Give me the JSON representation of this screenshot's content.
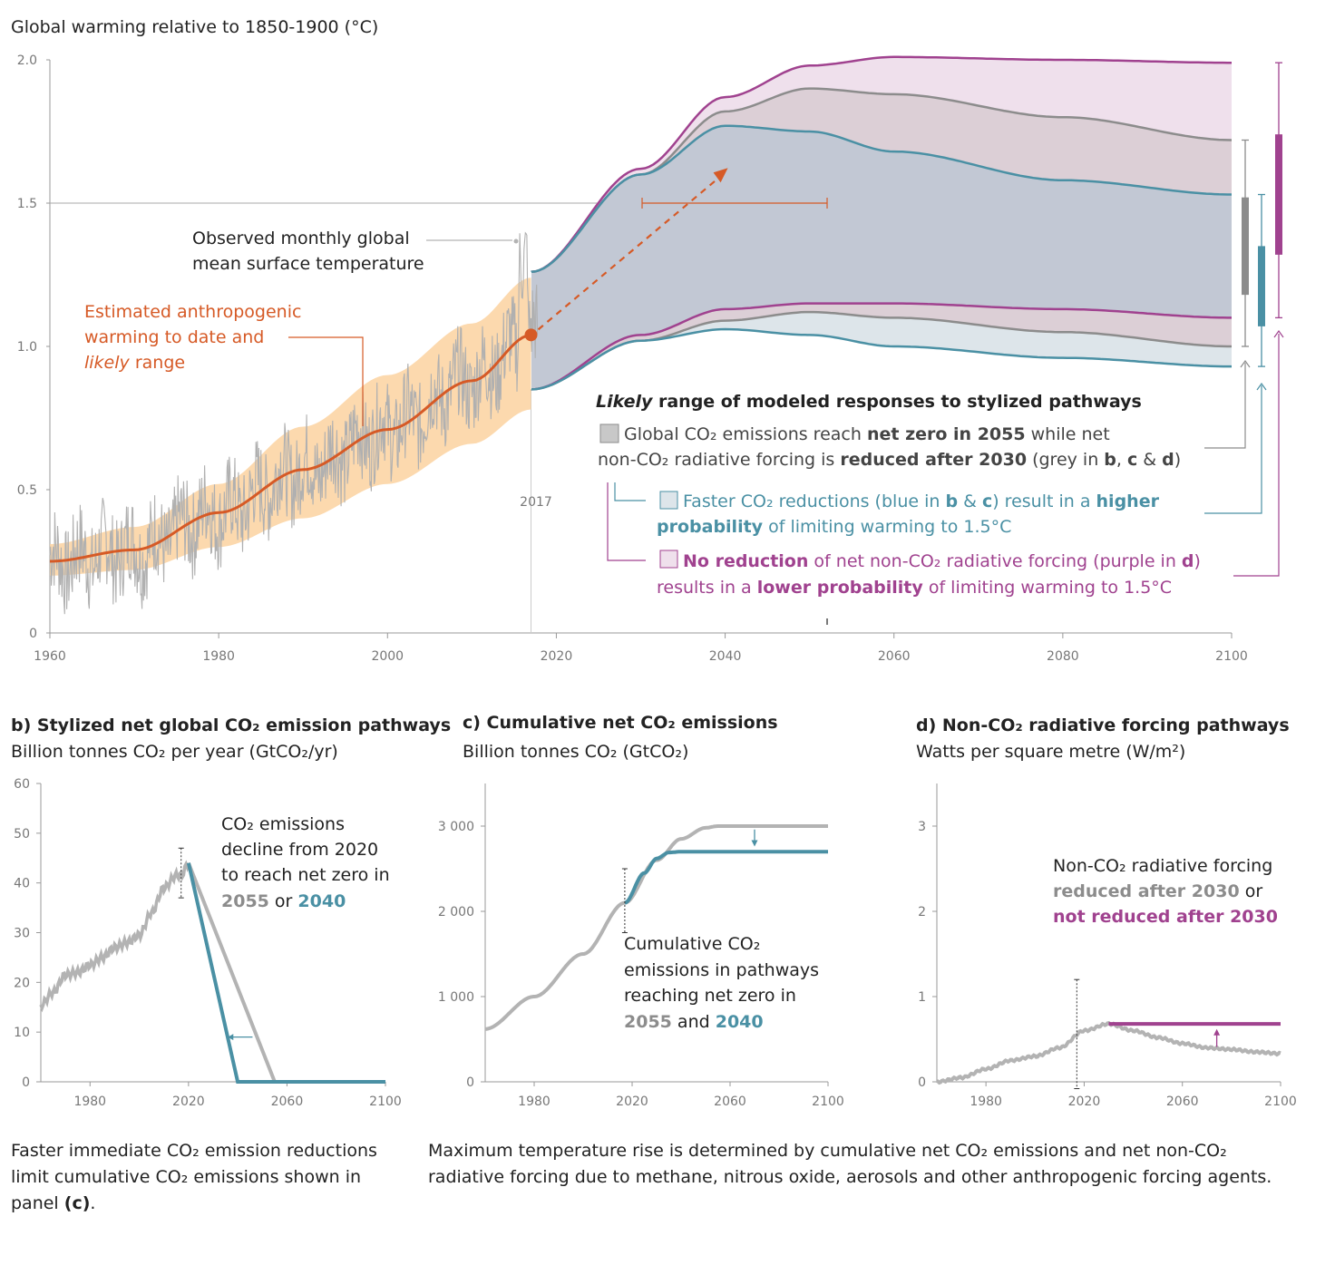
{
  "colors": {
    "orange": "#d65a26",
    "orange_band": "#fbd2a0",
    "grey": "#b3b3b3",
    "grey_dark": "#8c8c8c",
    "blue": "#4a90a4",
    "purple": "#a0428f",
    "band_blue": "#c2c8d4",
    "band_grey": "#dccfd6",
    "band_purple": "#efe0ec",
    "band_lightblue": "#dde5ea"
  },
  "panel_a": {
    "title": "Global warming relative to 1850-1900 (°C)",
    "observed_label_1": "Observed monthly global",
    "observed_label_2": "mean surface temperature",
    "anthro_label_1": "Estimated anthropogenic",
    "anthro_label_2": "warming to date and",
    "anthro_label_3_italic": "likely",
    "anthro_label_3_rest": " range",
    "year_marker": "2017",
    "legend_heading_italic": "Likely",
    "legend_heading_rest": " range of modeled responses to stylized pathways",
    "legend_grey_1a": "Global CO₂ emissions reach ",
    "legend_grey_1b": "net zero in 2055",
    "legend_grey_1c": " while net",
    "legend_grey_2a": "non-CO₂ radiative forcing is ",
    "legend_grey_2b": "reduced after 2030",
    "legend_grey_2c": " (grey in ",
    "legend_grey_2d": "b",
    "legend_grey_2e": ", ",
    "legend_grey_2f": "c",
    "legend_grey_2g": " & ",
    "legend_grey_2h": "d",
    "legend_grey_2i": ")",
    "legend_blue_1a": "Faster CO₂ reductions (blue in ",
    "legend_blue_1b": "b",
    "legend_blue_1c": " & ",
    "legend_blue_1d": "c",
    "legend_blue_1e": ") result in a ",
    "legend_blue_1f": "higher",
    "legend_blue_2a": "probability",
    "legend_blue_2b": " of limiting warming to 1.5°C",
    "legend_purple_1a": "No reduction",
    "legend_purple_1b": " of net non-CO₂ radiative forcing (purple in ",
    "legend_purple_1c": "d",
    "legend_purple_1d": ")",
    "legend_purple_2a": "results in a ",
    "legend_purple_2b": "lower probability",
    "legend_purple_2c": " of limiting warming to 1.5°C"
  },
  "panel_b": {
    "title": "b) Stylized net global CO₂ emission pathways",
    "subtitle": "Billion tonnes CO₂ per year (GtCO₂/yr)",
    "ann_1": "CO₂ emissions",
    "ann_2": "decline from 2020",
    "ann_3": "to reach net zero in",
    "ann_4a": "2055",
    "ann_4b": " or ",
    "ann_4c": "2040"
  },
  "panel_c": {
    "title": "c) Cumulative net CO₂ emissions",
    "subtitle": "Billion tonnes CO₂ (GtCO₂)",
    "ann_1": "Cumulative CO₂",
    "ann_2": "emissions in pathways",
    "ann_3": "reaching net zero in",
    "ann_4a": "2055",
    "ann_4b": " and ",
    "ann_4c": "2040"
  },
  "panel_d": {
    "title": "d) Non-CO₂ radiative forcing pathways",
    "subtitle": "Watts per square metre (W/m²)",
    "ann_1": "Non-CO₂ radiative forcing",
    "ann_2a": "reduced after 2030",
    "ann_2b": " or",
    "ann_3": "not reduced after 2030"
  },
  "footer_left_1": "Faster immediate CO₂ emission reductions",
  "footer_left_2": "limit cumulative CO₂ emissions shown in",
  "footer_left_3a": "panel ",
  "footer_left_3b": "(c)",
  "footer_left_3c": ".",
  "footer_right_1": "Maximum temperature rise is determined by cumulative net CO₂ emissions and net non-CO₂",
  "footer_right_2": "radiative forcing due to methane, nitrous oxide, aerosols and other anthropogenic forcing agents.",
  "chart_data": [
    {
      "type": "line",
      "panel": "a",
      "title": "Global warming relative to 1850-1900 (°C)",
      "xlim": [
        1960,
        2100
      ],
      "ylim": [
        0,
        2.0
      ],
      "x_ticks": [
        1960,
        1980,
        2000,
        2020,
        2040,
        2060,
        2080,
        2100
      ],
      "y_ticks": [
        {
          "value": 0,
          "label": "0"
        },
        {
          "value": 0.5,
          "label": "0.5"
        },
        {
          "value": 1.0,
          "label": "1.0"
        },
        {
          "value": 1.5,
          "label": "1.5"
        },
        {
          "value": 2.0,
          "label": "2.0"
        }
      ],
      "reference_line": 1.5,
      "series": [
        {
          "name": "Estimated anthropogenic warming",
          "x": [
            1960,
            1970,
            1980,
            1990,
            2000,
            2010,
            2017
          ],
          "y": [
            0.25,
            0.29,
            0.42,
            0.57,
            0.71,
            0.88,
            1.04
          ]
        },
        {
          "name": "Likely range lower",
          "x": [
            1960,
            1970,
            1980,
            1990,
            2000,
            2010,
            2017
          ],
          "y": [
            0.2,
            0.22,
            0.3,
            0.4,
            0.52,
            0.66,
            0.78
          ]
        },
        {
          "name": "Likely range upper",
          "x": [
            1960,
            1970,
            1980,
            1990,
            2000,
            2010,
            2017
          ],
          "y": [
            0.31,
            0.37,
            0.52,
            0.72,
            0.9,
            1.08,
            1.24
          ]
        }
      ],
      "pathway_ranges": [
        {
          "name": "grey",
          "x": [
            2017,
            2030,
            2040,
            2050,
            2060,
            2080,
            2100
          ],
          "upper": [
            1.26,
            1.6,
            1.82,
            1.9,
            1.88,
            1.8,
            1.72
          ],
          "lower": [
            0.85,
            1.02,
            1.09,
            1.12,
            1.1,
            1.05,
            1.0
          ]
        },
        {
          "name": "blue",
          "x": [
            2017,
            2030,
            2040,
            2050,
            2060,
            2080,
            2100
          ],
          "upper": [
            1.26,
            1.6,
            1.77,
            1.75,
            1.68,
            1.58,
            1.53
          ],
          "lower": [
            0.85,
            1.02,
            1.06,
            1.04,
            1.0,
            0.96,
            0.93
          ]
        },
        {
          "name": "purple",
          "x": [
            2017,
            2030,
            2040,
            2050,
            2060,
            2080,
            2100
          ],
          "upper": [
            1.26,
            1.62,
            1.87,
            1.98,
            2.01,
            2.0,
            1.99
          ],
          "lower": [
            0.85,
            1.04,
            1.13,
            1.15,
            1.15,
            1.13,
            1.1
          ]
        }
      ],
      "bars": [
        {
          "name": "grey",
          "whisker": [
            1.0,
            1.72
          ],
          "box": [
            1.18,
            1.52
          ]
        },
        {
          "name": "blue",
          "whisker": [
            0.93,
            1.53
          ],
          "box": [
            1.07,
            1.35
          ]
        },
        {
          "name": "purple",
          "whisker": [
            1.1,
            1.99
          ],
          "box": [
            1.32,
            1.74
          ]
        }
      ]
    },
    {
      "type": "line",
      "panel": "b",
      "title": "b) Stylized net global CO₂ emission pathways",
      "ylabel": "Billion tonnes CO₂ per year (GtCO₂/yr)",
      "xlim": [
        1960,
        2100
      ],
      "ylim": [
        0,
        60
      ],
      "x_ticks": [
        1980,
        2020,
        2060,
        2100
      ],
      "y_ticks": [
        0,
        10,
        20,
        30,
        40,
        50,
        60
      ],
      "series": [
        {
          "name": "historical",
          "x": [
            1960,
            1965,
            1970,
            1975,
            1980,
            1985,
            1990,
            1995,
            2000,
            2005,
            2010,
            2015,
            2017,
            2020
          ],
          "y": [
            15.5,
            18,
            21.5,
            22,
            23.5,
            25,
            27,
            28,
            29.5,
            34,
            39,
            41.5,
            41.5,
            44
          ]
        },
        {
          "name": "2055",
          "x": [
            2020,
            2055,
            2100
          ],
          "y": [
            44,
            0,
            0
          ]
        },
        {
          "name": "2040",
          "x": [
            2020,
            2040,
            2100
          ],
          "y": [
            44,
            0,
            0
          ]
        }
      ]
    },
    {
      "type": "line",
      "panel": "c",
      "title": "c) Cumulative net CO₂ emissions",
      "ylabel": "Billion tonnes CO₂ (GtCO₂)",
      "xlim": [
        1960,
        2100
      ],
      "ylim": [
        0,
        3500
      ],
      "x_ticks": [
        1980,
        2020,
        2060,
        2100
      ],
      "y_ticks": [
        {
          "value": 0,
          "label": "0"
        },
        {
          "value": 1000,
          "label": "1 000"
        },
        {
          "value": 2000,
          "label": "2 000"
        },
        {
          "value": 3000,
          "label": "3 000"
        }
      ],
      "series": [
        {
          "name": "2055",
          "x": [
            1960,
            1980,
            2000,
            2017,
            2030,
            2040,
            2050,
            2055,
            2100
          ],
          "y": [
            620,
            1000,
            1500,
            2100,
            2600,
            2850,
            2980,
            3000,
            3000
          ]
        },
        {
          "name": "2040",
          "x": [
            2017,
            2025,
            2030,
            2035,
            2040,
            2100
          ],
          "y": [
            2100,
            2450,
            2620,
            2690,
            2700,
            2700
          ]
        }
      ]
    },
    {
      "type": "line",
      "panel": "d",
      "title": "d) Non-CO₂ radiative forcing pathways",
      "ylabel": "Watts per square metre (W/m²)",
      "xlim": [
        1960,
        2100
      ],
      "ylim": [
        0,
        3.5
      ],
      "x_ticks": [
        1980,
        2020,
        2060,
        2100
      ],
      "y_ticks": [
        0,
        1,
        2,
        3
      ],
      "series": [
        {
          "name": "reduced after 2030",
          "x": [
            1960,
            1970,
            1980,
            1990,
            2000,
            2010,
            2020,
            2030,
            2040,
            2050,
            2060,
            2070,
            2080,
            2090,
            2100
          ],
          "y": [
            0.0,
            0.05,
            0.15,
            0.25,
            0.3,
            0.4,
            0.6,
            0.68,
            0.6,
            0.52,
            0.45,
            0.4,
            0.38,
            0.35,
            0.33
          ]
        },
        {
          "name": "not reduced after 2030",
          "x": [
            2030,
            2100
          ],
          "y": [
            0.68,
            0.68
          ]
        }
      ]
    }
  ]
}
